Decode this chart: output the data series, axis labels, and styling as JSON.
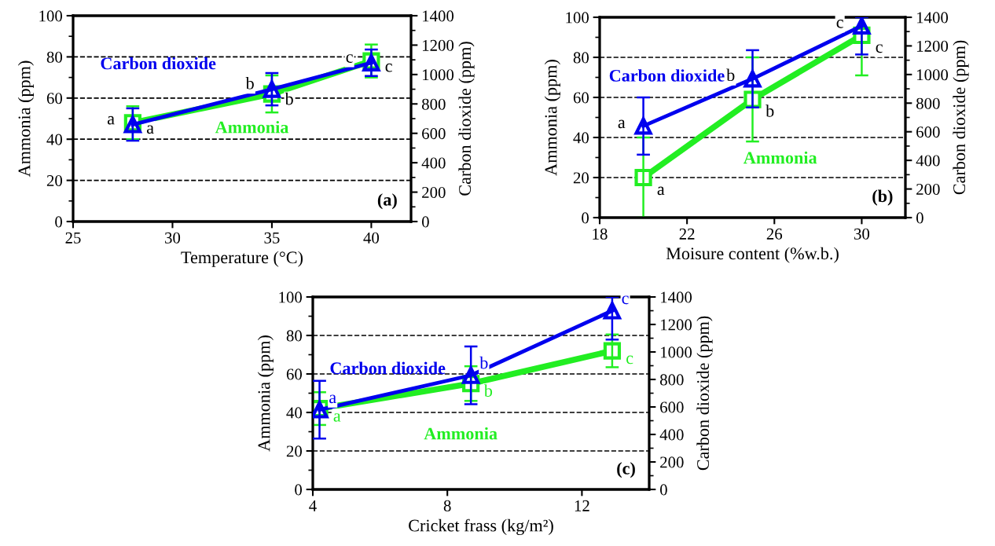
{
  "chart_data": [
    {
      "type": "line",
      "xlabel": "Temperature (°C)",
      "ylabel": "Ammonia (ppm)",
      "y2label": "Carbon dioxide (ppm)",
      "annotations": [
        "(a)"
      ],
      "xlim": [
        25,
        42
      ],
      "xticks": [
        25,
        30,
        35,
        40
      ],
      "ylim": [
        0,
        100
      ],
      "yticks": [
        0,
        20,
        40,
        60,
        80,
        100
      ],
      "y2lim": [
        0,
        1400
      ],
      "y2ticks": [
        0,
        200,
        400,
        600,
        800,
        1000,
        1200,
        1400
      ],
      "grid": "y",
      "line_style": "solid",
      "series": [
        {
          "name": "Ammonia",
          "color": "#22ee22",
          "marker": "square",
          "x": [
            28,
            35,
            40
          ],
          "values": [
            48,
            62,
            78
          ],
          "errors": [
            8,
            9,
            8
          ],
          "value_labels": [
            "a",
            "b",
            "c"
          ]
        },
        {
          "name": "Carbon dioxide",
          "color": "#0000ee",
          "marker": "triangle",
          "axis": "y2",
          "x": [
            28,
            35,
            40
          ],
          "values": [
            660,
            900,
            1080
          ],
          "errors": [
            110,
            110,
            90
          ],
          "value_labels": [
            "a",
            "b",
            "c"
          ]
        }
      ]
    },
    {
      "type": "line",
      "xlabel": "Moisure content (%w.b.)",
      "ylabel": "Ammonia (ppm)",
      "y2label": "Carbon dioxide (ppm)",
      "annotations": [
        "(b)"
      ],
      "xlim": [
        18,
        32
      ],
      "xticks": [
        18,
        22,
        26,
        30
      ],
      "ylim": [
        0,
        100
      ],
      "yticks": [
        0,
        20,
        40,
        60,
        80,
        100
      ],
      "y2lim": [
        0,
        1400
      ],
      "y2ticks": [
        0,
        200,
        400,
        600,
        800,
        1000,
        1200,
        1400
      ],
      "grid": "y",
      "line_style": "solid",
      "series": [
        {
          "name": "Ammonia",
          "color": "#22ee22",
          "marker": "square",
          "x": [
            20,
            25,
            30
          ],
          "values": [
            20,
            59,
            91
          ],
          "errors": [
            20,
            21,
            [
              71,
              100
            ]
          ],
          "value_labels": [
            "a",
            "b",
            "c"
          ]
        },
        {
          "name": "Carbon dioxide",
          "color": "#0000ee",
          "marker": "triangle",
          "axis": "y2",
          "x": [
            20,
            25,
            30
          ],
          "values": [
            640,
            970,
            1340
          ],
          "errors": [
            200,
            200,
            [
              1140,
              1400
            ]
          ],
          "value_labels": [
            "a",
            "b",
            "c"
          ]
        }
      ]
    },
    {
      "type": "line",
      "xlabel": "Cricket frass (kg/m²)",
      "ylabel": "Ammonia (ppm)",
      "y2label": "Carbon dioxide (ppm)",
      "annotations": [
        "(c)"
      ],
      "xlim": [
        4,
        14
      ],
      "xticks": [
        4,
        8,
        12
      ],
      "ylim": [
        0,
        100
      ],
      "yticks": [
        0,
        20,
        40,
        60,
        80,
        100
      ],
      "y2lim": [
        0,
        1400
      ],
      "y2ticks": [
        0,
        200,
        400,
        600,
        800,
        1000,
        1200,
        1400
      ],
      "grid": "y",
      "line_style": "solid",
      "series": [
        {
          "name": "Ammonia",
          "color": "#22ee22",
          "marker": "square",
          "x": [
            4.2,
            8.7,
            12.9
          ],
          "values": [
            42,
            55,
            72
          ],
          "errors": [
            8.5,
            9,
            8.5
          ],
          "value_labels": [
            "a",
            "b",
            "c"
          ]
        },
        {
          "name": "Carbon dioxide",
          "color": "#0000ee",
          "marker": "triangle",
          "axis": "y2",
          "x": [
            4.2,
            8.7,
            12.9
          ],
          "values": [
            580,
            830,
            1300
          ],
          "errors": [
            210,
            210,
            [
              1090,
              1400
            ]
          ],
          "value_labels": [
            "a",
            "b",
            "c"
          ]
        }
      ]
    }
  ]
}
